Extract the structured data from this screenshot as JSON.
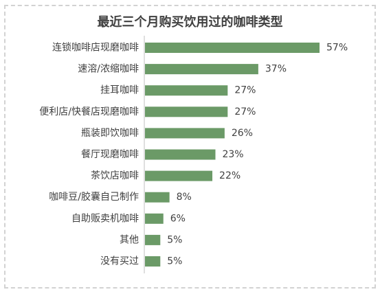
{
  "chart_data": {
    "type": "bar",
    "orientation": "horizontal",
    "title": "最近三个月购买饮用过的咖啡类型",
    "categories": [
      "连锁咖啡店现磨咖啡",
      "速溶/浓缩咖啡",
      "挂耳咖啡",
      "便利店/快餐店现磨咖啡",
      "瓶装即饮咖啡",
      "餐厅现磨咖啡",
      "茶饮店咖啡",
      "咖啡豆/胶囊自己制作",
      "自助贩卖机咖啡",
      "其他",
      "没有买过"
    ],
    "values": [
      57,
      37,
      27,
      27,
      26,
      23,
      22,
      8,
      6,
      5,
      5
    ],
    "value_labels": [
      "57%",
      "37%",
      "27%",
      "27%",
      "26%",
      "23%",
      "22%",
      "8%",
      "6%",
      "5%",
      "5%"
    ],
    "unit": "%",
    "xlim": [
      0,
      60
    ],
    "bar_color": "#6b9a67",
    "grid": false,
    "legend": "none"
  }
}
